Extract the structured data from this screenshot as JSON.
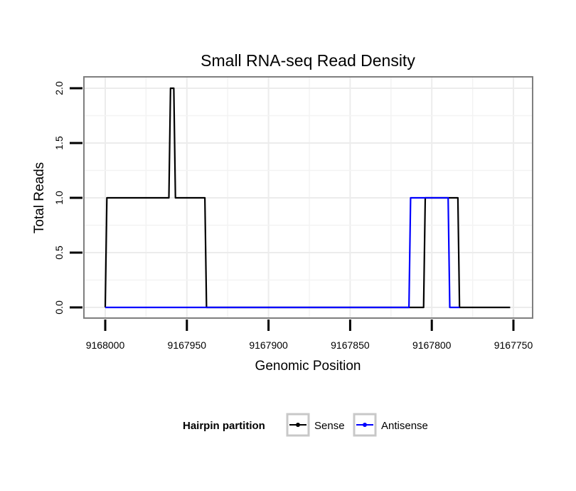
{
  "chart_data": {
    "type": "line",
    "title": "Small RNA-seq Read Density",
    "xlabel": "Genomic Position",
    "ylabel": "Total Reads",
    "xlim": [
      9168000,
      9167750
    ],
    "x_reversed": true,
    "ylim": [
      0,
      2
    ],
    "xticks": [
      9168000,
      9167950,
      9167900,
      9167850,
      9167800,
      9167750
    ],
    "xtick_labels": [
      "9168000",
      "9167950",
      "9167900",
      "9167850",
      "9167800",
      "9167750"
    ],
    "yticks": [
      0,
      0.5,
      1,
      1.5,
      2
    ],
    "ytick_labels": [
      "0.0",
      "0.5",
      "1.0",
      "1.5",
      "2.0"
    ],
    "grid": true,
    "legend": {
      "title": "Hairpin partition",
      "position": "bottom",
      "entries": [
        {
          "name": "Sense",
          "color": "#000000"
        },
        {
          "name": "Antisense",
          "color": "#0000ff"
        }
      ]
    },
    "series": [
      {
        "name": "Sense",
        "color": "#000000",
        "x": [
          9168000,
          9167999,
          9167961,
          9167960,
          9167958,
          9167957,
          9167939,
          9167938,
          9167805,
          9167804,
          9167784,
          9167783,
          9167752
        ],
        "y": [
          0,
          1,
          1,
          2,
          2,
          1,
          1,
          0,
          0,
          1,
          1,
          0,
          0
        ]
      },
      {
        "name": "Antisense",
        "color": "#0000ff",
        "x": [
          9168000,
          9167814,
          9167813,
          9167790,
          9167789,
          9167783
        ],
        "y": [
          0,
          0,
          1,
          1,
          0,
          0
        ]
      }
    ]
  }
}
